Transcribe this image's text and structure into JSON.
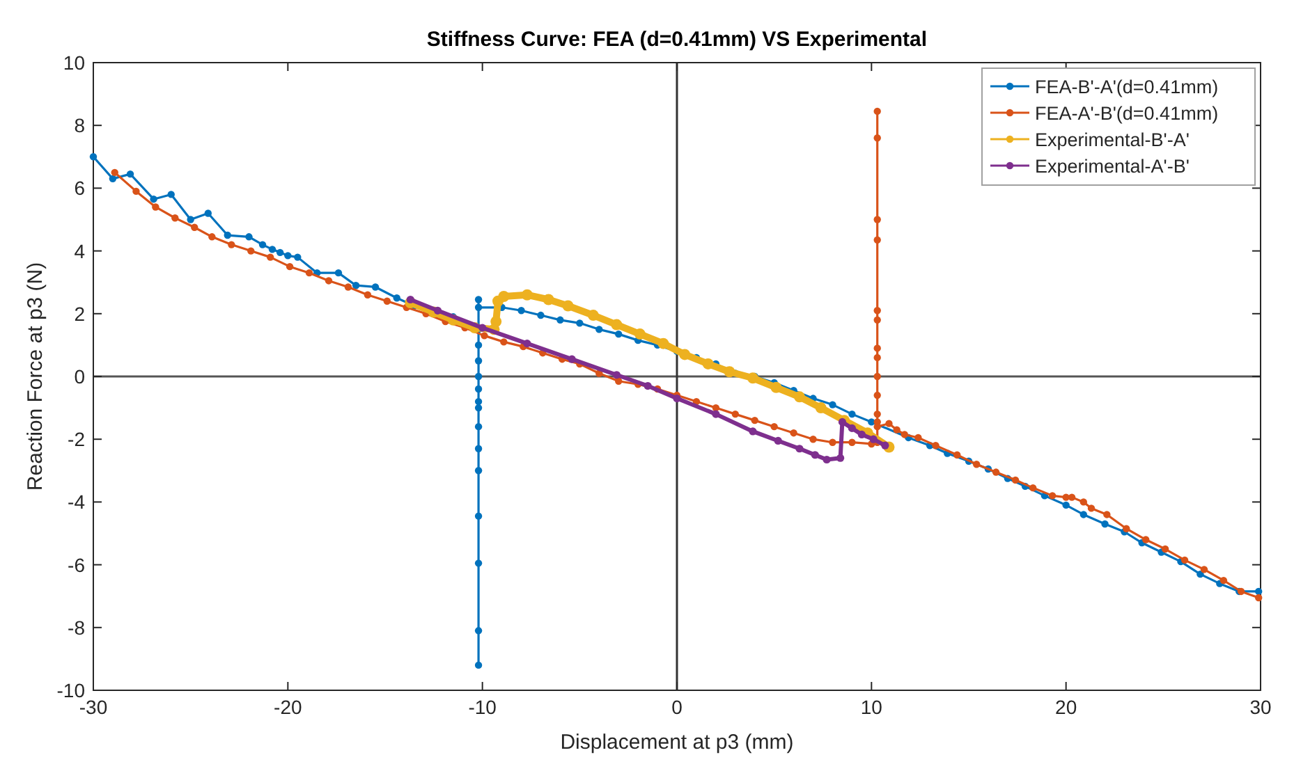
{
  "chart_data": {
    "type": "line",
    "title": "Stiffness Curve: FEA (d=0.41mm) VS Experimental",
    "xlabel": "Displacement at p3 (mm)",
    "ylabel": "Reaction Force at p3 (N)",
    "xlim": [
      -30,
      30
    ],
    "xticks": [
      -30,
      -20,
      -10,
      0,
      10,
      20,
      30
    ],
    "ylim": [
      -10,
      10
    ],
    "yticks": [
      -10,
      -8,
      -6,
      -4,
      -2,
      0,
      2,
      4,
      6,
      8,
      10
    ],
    "grid": false,
    "legend": "top right",
    "marker": "circle",
    "line_style": "solid",
    "ref_lines": [
      {
        "axis": "y",
        "value": 0,
        "color": "#555555"
      },
      {
        "axis": "x",
        "value": 0,
        "color": "#333333"
      }
    ],
    "series": [
      {
        "name": "FEA-B'-A'(d=0.41mm)",
        "color": "#0072bd",
        "x": [
          -30,
          -29,
          -28.1,
          -26.9,
          -26,
          -25,
          -24.1,
          -23.1,
          -22,
          -21.3,
          -20.8,
          -20.4,
          -20,
          -19.5,
          -18.5,
          -17.4,
          -16.5,
          -15.5,
          -14.4,
          -13.5,
          -11.5,
          -10.2,
          -10.2,
          -10.2,
          -10.2,
          -10.2,
          -10.2,
          -10.2,
          -10.2,
          -10.2,
          -10.2,
          -10.2,
          -10.2,
          -10.2,
          -10.2,
          -10.2,
          -10.2,
          -9,
          -8,
          -7,
          -6,
          -5,
          -4,
          -3,
          -2,
          -1,
          0,
          1,
          2,
          3,
          4,
          5,
          6,
          7,
          8,
          9,
          10,
          11.9,
          13,
          13.9,
          15,
          16,
          17,
          17.9,
          18.9,
          20,
          20.9,
          22,
          23,
          23.9,
          24.9,
          25.9,
          26.9,
          27.9,
          28.9,
          29.9
        ],
        "values": [
          7,
          6.3,
          6.45,
          5.65,
          5.8,
          5,
          5.2,
          4.5,
          4.45,
          4.2,
          4.05,
          3.95,
          3.85,
          3.8,
          3.3,
          3.3,
          2.9,
          2.85,
          2.5,
          2.25,
          1.9,
          1.5,
          1,
          0.5,
          0,
          -0.4,
          -0.8,
          -1,
          -1.6,
          -2.3,
          -3,
          -4.45,
          -5.95,
          -8.1,
          -9.2,
          2.45,
          2.2,
          2.2,
          2.1,
          1.95,
          1.8,
          1.7,
          1.5,
          1.35,
          1.15,
          1,
          0.8,
          0.6,
          0.4,
          0.1,
          0,
          -0.2,
          -0.45,
          -0.7,
          -0.9,
          -1.2,
          -1.45,
          -1.95,
          -2.2,
          -2.45,
          -2.7,
          -2.95,
          -3.25,
          -3.5,
          -3.8,
          -4.1,
          -4.4,
          -4.7,
          -4.95,
          -5.3,
          -5.6,
          -5.9,
          -6.3,
          -6.6,
          -6.85,
          -6.85
        ]
      },
      {
        "name": "FEA-A'-B'(d=0.41mm)",
        "color": "#d95319",
        "x": [
          -28.9,
          -27.8,
          -26.8,
          -25.8,
          -24.8,
          -23.9,
          -22.9,
          -21.9,
          -20.9,
          -19.9,
          -18.9,
          -17.9,
          -16.9,
          -15.9,
          -14.9,
          -13.9,
          -12.9,
          -11.9,
          -10.9,
          -9.9,
          -8.9,
          -7.9,
          -6.9,
          -5.9,
          -5,
          -4,
          -3,
          -2,
          -1,
          0,
          1,
          2,
          3,
          4,
          5,
          6,
          7,
          8,
          9,
          10,
          10.3,
          10.3,
          10.3,
          10.3,
          10.3,
          10.3,
          10.3,
          10.3,
          10.3,
          10.3,
          10.3,
          10.3,
          10.3,
          10.3,
          10.9,
          11.3,
          11.7,
          12.4,
          13.3,
          14.4,
          15.4,
          16.4,
          17.4,
          18.3,
          19.3,
          20,
          20.3,
          20.9,
          21.3,
          22.1,
          23.1,
          24.1,
          25.1,
          26.1,
          27.1,
          28.1,
          29,
          29.9
        ],
        "values": [
          6.5,
          5.9,
          5.4,
          5.05,
          4.75,
          4.45,
          4.2,
          4,
          3.8,
          3.5,
          3.3,
          3.05,
          2.85,
          2.6,
          2.4,
          2.2,
          2,
          1.75,
          1.55,
          1.3,
          1.1,
          0.95,
          0.75,
          0.55,
          0.4,
          0.1,
          -0.15,
          -0.25,
          -0.4,
          -0.6,
          -0.8,
          -1,
          -1.2,
          -1.4,
          -1.6,
          -1.8,
          -2,
          -2.1,
          -2.1,
          -2.15,
          -2.1,
          -1.45,
          -1.2,
          -0.6,
          0,
          0.6,
          0.9,
          1.8,
          2.1,
          4.35,
          5,
          7.6,
          8.45,
          -1.6,
          -1.5,
          -1.7,
          -1.85,
          -1.95,
          -2.2,
          -2.5,
          -2.8,
          -3.05,
          -3.3,
          -3.55,
          -3.8,
          -3.85,
          -3.85,
          -4,
          -4.2,
          -4.4,
          -4.85,
          -5.2,
          -5.5,
          -5.85,
          -6.15,
          -6.5,
          -6.85,
          -7.05
        ]
      },
      {
        "name": "Experimental-B'-A'",
        "color": "#edb120",
        "x": [
          -13.7,
          -12.5,
          -11.5,
          -10.4,
          -9.4,
          -9.3,
          -9.2,
          -8.9,
          -7.7,
          -6.6,
          -5.6,
          -4.3,
          -3.1,
          -1.9,
          -0.7,
          0.4,
          1.6,
          2.7,
          3.9,
          5.1,
          6.3,
          7.4,
          8.6,
          9.8,
          10.9
        ],
        "values": [
          2.35,
          2.05,
          1.8,
          1.55,
          1.5,
          1.75,
          2.4,
          2.55,
          2.6,
          2.45,
          2.25,
          1.95,
          1.65,
          1.35,
          1.05,
          0.7,
          0.4,
          0.15,
          -0.05,
          -0.35,
          -0.65,
          -1,
          -1.4,
          -1.8,
          -2.25
        ]
      },
      {
        "name": "Experimental-A'-B'",
        "color": "#7e2f8e",
        "x": [
          -13.7,
          -12.3,
          -10,
          -7.7,
          -5.4,
          -3.1,
          -1.5,
          0,
          2,
          3.9,
          5.2,
          6.3,
          7.1,
          7.7,
          8.4,
          8.5,
          9,
          9.5,
          10.1,
          10.7
        ],
        "values": [
          2.45,
          2.1,
          1.55,
          1.05,
          0.55,
          0.05,
          -0.3,
          -0.7,
          -1.2,
          -1.75,
          -2.05,
          -2.3,
          -2.5,
          -2.65,
          -2.6,
          -1.45,
          -1.65,
          -1.85,
          -2,
          -2.2
        ]
      }
    ]
  }
}
